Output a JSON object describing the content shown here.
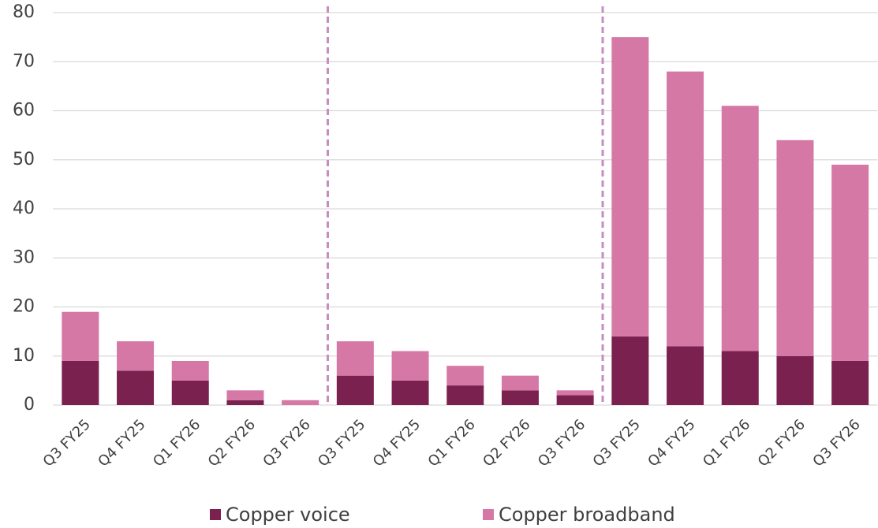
{
  "chart_data": {
    "type": "stacked_bar",
    "categories": [
      "Q3 FY25",
      "Q4 FY25",
      "Q1 FY26",
      "Q2 FY26",
      "Q3 FY26",
      "Q3 FY25",
      "Q4 FY25",
      "Q1 FY26",
      "Q2 FY26",
      "Q3 FY26",
      "Q3 FY25",
      "Q4 FY25",
      "Q1 FY26",
      "Q2 FY26",
      "Q3 FY26"
    ],
    "series": [
      {
        "name": "Copper voice",
        "color": "#7b2150",
        "values": [
          9,
          7,
          5,
          1,
          0,
          6,
          5,
          4,
          3,
          2,
          14,
          12,
          11,
          10,
          9
        ]
      },
      {
        "name": "Copper broadband",
        "color": "#d678a6",
        "values": [
          10,
          6,
          4,
          2,
          1,
          7,
          6,
          4,
          3,
          1,
          61,
          56,
          50,
          44,
          40
        ]
      }
    ],
    "ylim": [
      0,
      80
    ],
    "yticks": [
      0,
      10,
      20,
      30,
      40,
      50,
      60,
      70,
      80
    ],
    "grid": true,
    "legend": "bottom"
  }
}
